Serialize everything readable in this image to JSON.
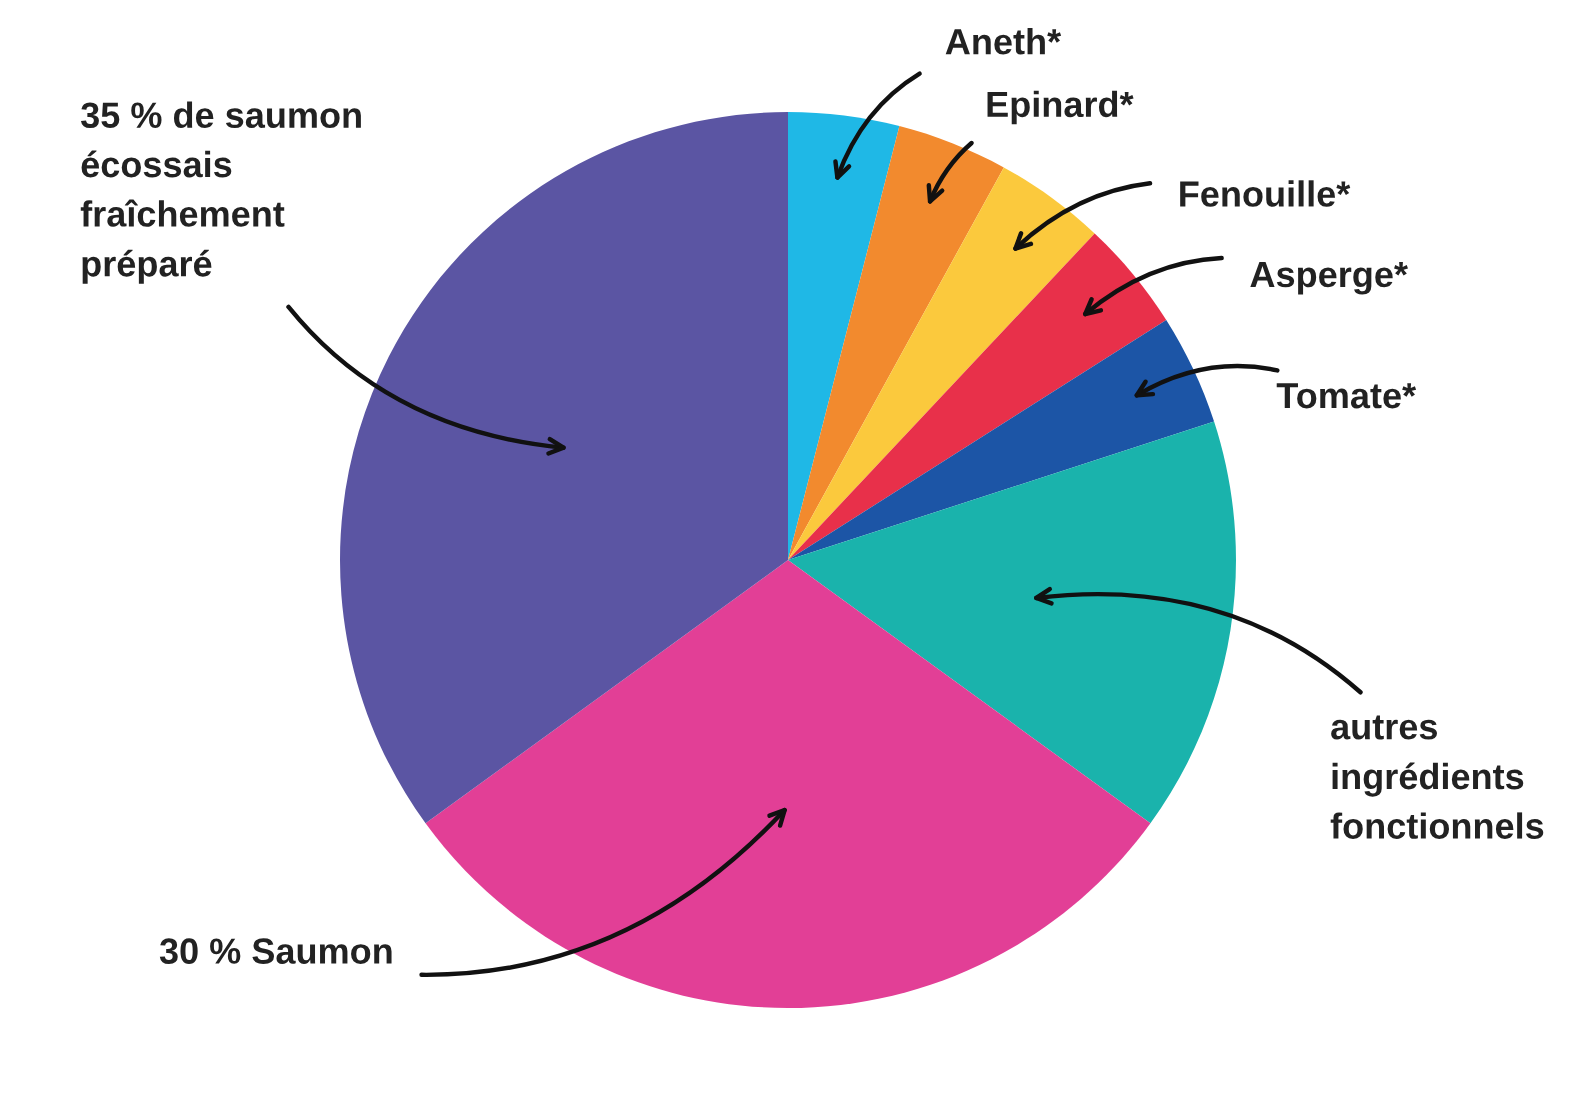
{
  "chart_data": {
    "type": "pie",
    "categories": [
      "Aneth*",
      "Epinard*",
      "Fenouille*",
      "Asperge*",
      "Tomate*",
      "autres\ningrédients\nfonctionnels",
      "30 % Saumon",
      "35 % de saumon\nécossais\nfraîchement\npréparé"
    ],
    "values": [
      4,
      4,
      4,
      4,
      4,
      15,
      30,
      35
    ],
    "colors": [
      "#1fb8e6",
      "#f28a2e",
      "#fbc93d",
      "#e8304a",
      "#1c55a6",
      "#1ab3ac",
      "#e23f96",
      "#5b55a3"
    ],
    "legend": false
  }
}
